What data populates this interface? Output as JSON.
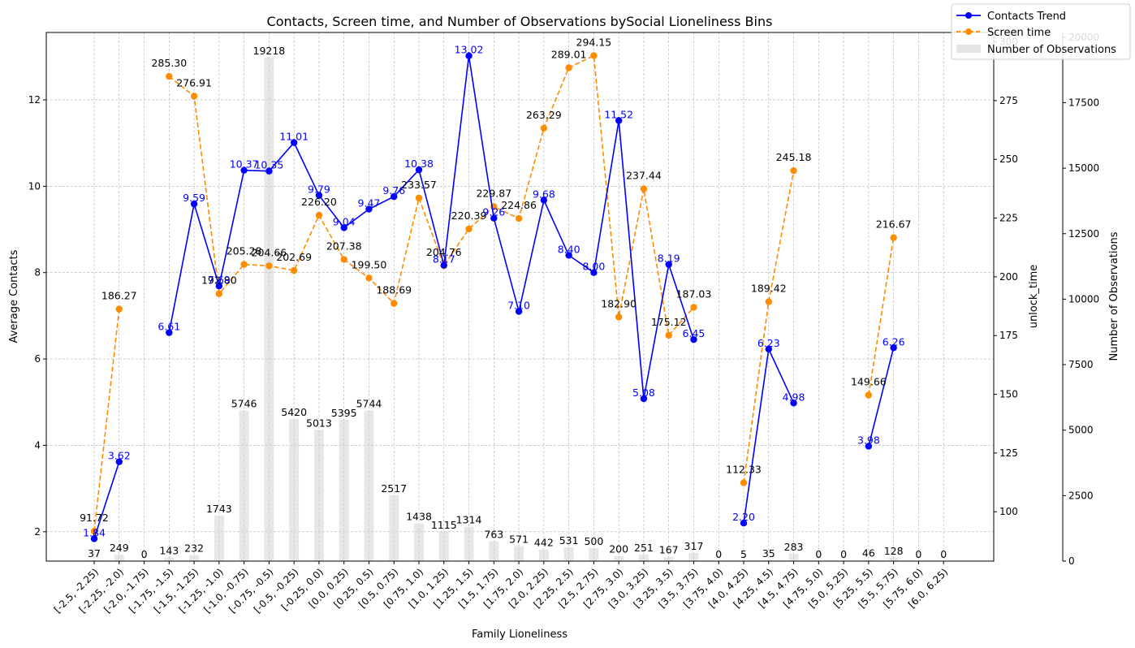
{
  "chart_data": {
    "type": "line",
    "title": "Contacts, Screen time, and Number of Observations bySocial Lioneliness Bins",
    "xlabel": "Family Lioneliness",
    "ylabel": "Average Contacts",
    "y2label": "unlock_time",
    "y3label": "Number of Observations",
    "categories": [
      "[-2.5, -2.25)",
      "[-2.25, -2.0)",
      "[-2.0, -1.75)",
      "[-1.75, -1.5)",
      "[-1.5, -1.25)",
      "[-1.25, -1.0)",
      "[-1.0, -0.75)",
      "[-0.75, -0.5)",
      "[-0.5, -0.25)",
      "[-0.25, 0.0)",
      "[0.0, 0.25)",
      "[0.25, 0.5)",
      "[0.5, 0.75)",
      "[0.75, 1.0)",
      "[1.0, 1.25)",
      "[1.25, 1.5)",
      "[1.5, 1.75)",
      "[1.75, 2.0)",
      "[2.0, 2.25)",
      "[2.25, 2.5)",
      "[2.5, 2.75)",
      "[2.75, 3.0)",
      "[3.0, 3.25)",
      "[3.25, 3.5)",
      "[3.5, 3.75)",
      "[3.75, 4.0)",
      "[4.0, 4.25)",
      "[4.25, 4.5)",
      "[4.5, 4.75)",
      "[4.75, 5.0)",
      "[5.0, 5.25)",
      "[5.25, 5.5)",
      "[5.5, 5.75)",
      "[5.75, 6.0)",
      "[6.0, 6.25)"
    ],
    "series": [
      {
        "name": "Contacts Trend",
        "color": "#0000ff",
        "axis": "left",
        "values": [
          1.84,
          3.62,
          null,
          6.61,
          9.59,
          7.69,
          10.37,
          10.35,
          11.01,
          9.79,
          9.04,
          9.47,
          9.76,
          10.38,
          8.17,
          13.02,
          9.26,
          7.1,
          9.68,
          8.4,
          8.0,
          11.52,
          5.08,
          8.19,
          6.45,
          null,
          2.2,
          6.23,
          4.98,
          null,
          null,
          3.98,
          6.26,
          null,
          null
        ],
        "labels": [
          "1.84",
          "3.62",
          "",
          "6.61",
          "9.59",
          "7.69",
          "10.37",
          "10.35",
          "11.01",
          "9.79",
          "9.04",
          "9.47",
          "9.76",
          "10.38",
          "8.17",
          "13.02",
          "9.26",
          "7.10",
          "9.68",
          "8.40",
          "8.00",
          "11.52",
          "5.08",
          "8.19",
          "6.45",
          "",
          "2.20",
          "6.23",
          "4.98",
          "",
          "",
          "3.98",
          "6.26",
          "",
          ""
        ]
      },
      {
        "name": "Screen time",
        "color": "#ff8c00",
        "axis": "right",
        "values": [
          91.72,
          186.27,
          null,
          285.3,
          276.91,
          192.8,
          205.28,
          204.66,
          202.69,
          226.2,
          207.38,
          199.5,
          188.69,
          233.57,
          204.76,
          220.39,
          229.87,
          224.86,
          263.29,
          289.01,
          294.15,
          182.9,
          237.44,
          175.12,
          187.03,
          null,
          112.33,
          189.42,
          245.18,
          null,
          null,
          149.66,
          216.67,
          null,
          null
        ],
        "labels": [
          "91.72",
          "186.27",
          "",
          "285.30",
          "276.91",
          "192.80",
          "205.28",
          "204.66",
          "202.69",
          "226.20",
          "207.38",
          "199.50",
          "188.69",
          "233.57",
          "204.76",
          "220.39",
          "229.87",
          "224.86",
          "263.29",
          "289.01",
          "294.15",
          "182.90",
          "237.44",
          "175.12",
          "187.03",
          "",
          "112.33",
          "189.42",
          "245.18",
          "",
          "",
          "149.66",
          "216.67",
          "",
          ""
        ]
      },
      {
        "name": "Number of Observations",
        "color": "#d3d3d3",
        "axis": "right2",
        "type": "bar",
        "values": [
          37,
          249,
          0,
          143,
          232,
          1743,
          5746,
          19218,
          5420,
          5013,
          5395,
          5744,
          2517,
          1438,
          1115,
          1314,
          763,
          571,
          442,
          531,
          500,
          200,
          251,
          167,
          317,
          0,
          5,
          35,
          283,
          0,
          0,
          46,
          128,
          0,
          0
        ],
        "labels": [
          "37",
          "249",
          "0",
          "143",
          "232",
          "1743",
          "5746",
          "19218",
          "5420",
          "5013",
          "5395",
          "5744",
          "2517",
          "1438",
          "1115",
          "1314",
          "763",
          "571",
          "442",
          "531",
          "500",
          "200",
          "251",
          "167",
          "317",
          "0",
          "5",
          "35",
          "283",
          "0",
          "0",
          "46",
          "128",
          "0",
          "0"
        ]
      }
    ],
    "ylim": [
      1.32,
      13.56
    ],
    "y2lim": [
      79,
      304
    ],
    "y3lim": [
      0,
      20180
    ],
    "yticks": [
      "2",
      "4",
      "6",
      "8",
      "10",
      "12"
    ],
    "y2ticks": [
      "100",
      "125",
      "150",
      "175",
      "200",
      "225",
      "250",
      "275",
      "300"
    ],
    "y3ticks": [
      "0",
      "2500",
      "5000",
      "7500",
      "10000",
      "12500",
      "15000",
      "17500",
      "20000"
    ],
    "grid": true,
    "legend_position": "top-right"
  }
}
